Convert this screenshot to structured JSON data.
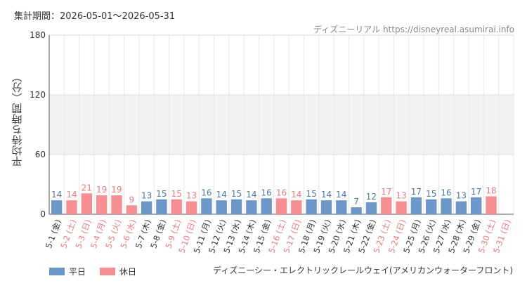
{
  "header": {
    "period": "集計期間：2026-05-01～2026-05-31",
    "credit": "ディズニーリアル https://disneyreal.asumirai.info"
  },
  "legend": {
    "weekday_label": "平日",
    "holiday_label": "休日",
    "weekday_color": "#6b98c9",
    "holiday_color": "#f78f92"
  },
  "attraction": "ディズニーシー・エレクトリックレールウェイ(アメリカンウォーターフロント)",
  "chart_data": {
    "type": "bar",
    "title": "",
    "xlabel": "",
    "ylabel": "平均待ち時間（分）",
    "ylim": [
      0,
      180
    ],
    "yticks": [
      0,
      60,
      120,
      180
    ],
    "shaded_band": [
      60,
      120
    ],
    "categories": [
      "5-1 (金)",
      "5-2 (土)",
      "5-3 (日)",
      "5-4 (月)",
      "5-5 (火)",
      "5-6 (水)",
      "5-7 (木)",
      "5-8 (金)",
      "5-9 (土)",
      "5-10 (日)",
      "5-11 (月)",
      "5-12 (火)",
      "5-13 (水)",
      "5-14 (木)",
      "5-15 (金)",
      "5-16 (土)",
      "5-17 (日)",
      "5-18 (月)",
      "5-19 (火)",
      "5-20 (水)",
      "5-21 (木)",
      "5-22 (金)",
      "5-23 (土)",
      "5-24 (日)",
      "5-25 (月)",
      "5-26 (火)",
      "5-27 (水)",
      "5-28 (木)",
      "5-29 (金)",
      "5-30 (土)",
      "5-31 (日)"
    ],
    "values": [
      14,
      14,
      21,
      19,
      19,
      9,
      13,
      15,
      15,
      13,
      16,
      14,
      15,
      14,
      16,
      16,
      14,
      15,
      14,
      14,
      7,
      12,
      17,
      13,
      17,
      15,
      16,
      13,
      17,
      18,
      null
    ],
    "day_type": [
      "weekday",
      "holiday",
      "holiday",
      "holiday",
      "holiday",
      "holiday",
      "weekday",
      "weekday",
      "holiday",
      "holiday",
      "weekday",
      "weekday",
      "weekday",
      "weekday",
      "weekday",
      "holiday",
      "holiday",
      "weekday",
      "weekday",
      "weekday",
      "weekday",
      "weekday",
      "holiday",
      "holiday",
      "weekday",
      "weekday",
      "weekday",
      "weekday",
      "weekday",
      "holiday",
      "holiday"
    ]
  }
}
